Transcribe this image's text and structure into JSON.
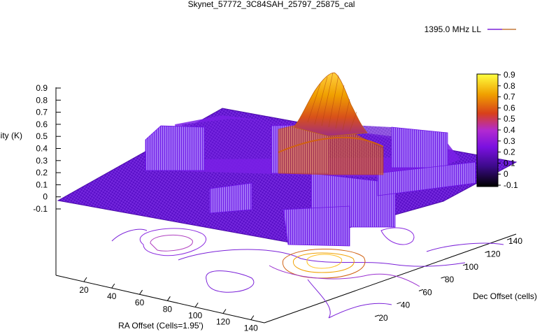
{
  "chart_data": {
    "type": "surface3d",
    "title": "Skynet_57772_3C84SAH_25797_25875_cal",
    "legend": {
      "label": "1395.0 MHz LL",
      "placement": "top-right"
    },
    "xlabel": "RA Offset (Cells=1.95')",
    "ylabel": "Dec Offset (cells)",
    "zlabel": "Intensity (K)",
    "x_ticks": [
      "20",
      "40",
      "60",
      "80",
      "100",
      "120",
      "140"
    ],
    "y_ticks": [
      "20",
      "40",
      "60",
      "80",
      "100",
      "120",
      "140"
    ],
    "z_ticks": [
      "0.9",
      "0.8",
      "0.7",
      "0.6",
      "0.5",
      "0.4",
      "0.3",
      "0.2",
      "0.1",
      "0",
      "-0.1"
    ],
    "colorbar": {
      "ticks": [
        "0.9",
        "0.8",
        "0.7",
        "0.6",
        "0.5",
        "0.4",
        "0.3",
        "0.2",
        "0.1",
        "0",
        "-0.1"
      ],
      "range": [
        -0.1,
        0.9
      ],
      "colors": [
        "#000000",
        "#3c0a8a",
        "#7a10e0",
        "#b22ad0",
        "#d8401a",
        "#f0a000",
        "#ffff40"
      ]
    },
    "xlim": [
      0,
      150
    ],
    "ylim": [
      15,
      150
    ],
    "zlim": [
      -0.1,
      0.9
    ],
    "surface_colors": {
      "base": "#6a12e6",
      "mid": "#9a26d4",
      "hot": "#d8501a",
      "peak": "#f0b000"
    },
    "peak": {
      "x": 85,
      "y": 100,
      "z": 0.87
    }
  }
}
